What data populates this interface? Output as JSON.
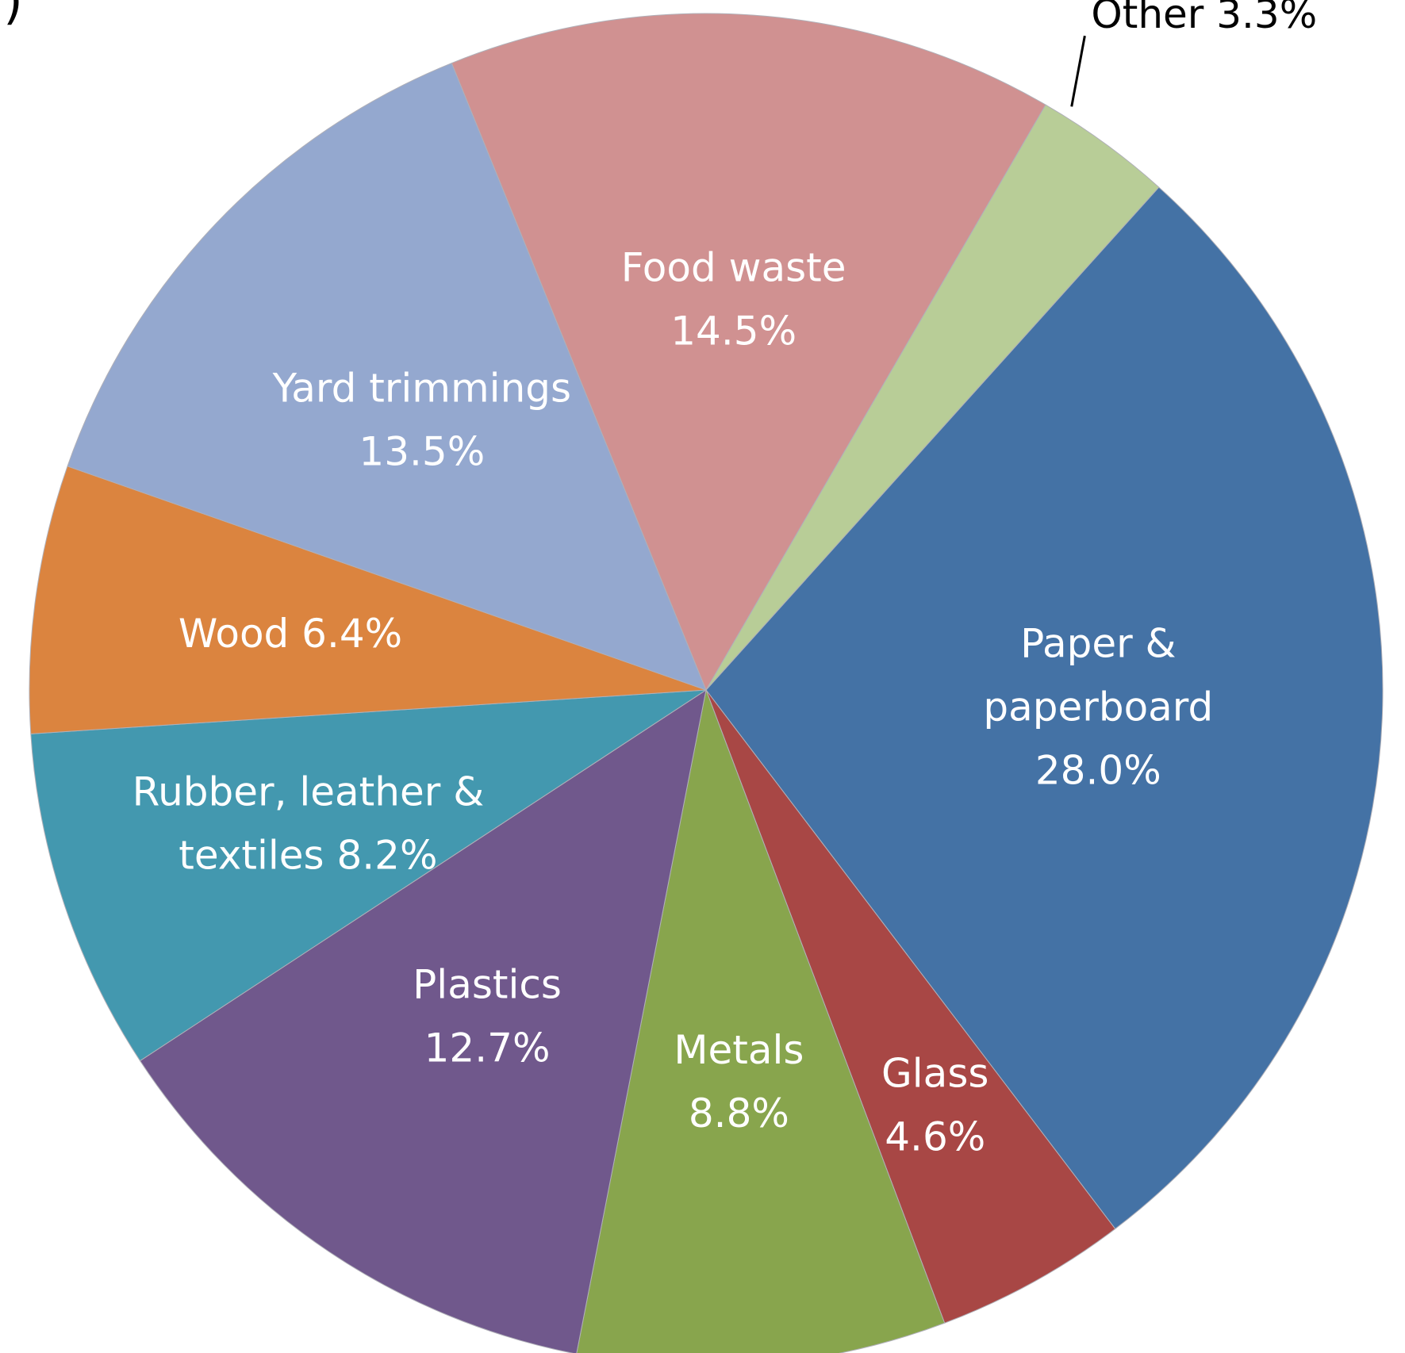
{
  "panel_mark": ")",
  "chart_data": {
    "type": "pie",
    "title": "",
    "unit": "%",
    "start_angle_deg": 42,
    "direction": "clockwise",
    "grid": false,
    "legend": "none",
    "slices": [
      {
        "name": "Paper & paperboard",
        "value": 28.0,
        "color": "#4472A5",
        "label_lines": [
          "Paper &",
          "paperboard",
          "28.0%"
        ],
        "label_position": "inside"
      },
      {
        "name": "Glass",
        "value": 4.6,
        "color": "#A84745",
        "label_lines": [
          "Glass",
          "4.6%"
        ],
        "label_position": "inside"
      },
      {
        "name": "Metals",
        "value": 8.8,
        "color": "#88A54D",
        "label_lines": [
          "Metals",
          "8.8%"
        ],
        "label_position": "inside"
      },
      {
        "name": "Plastics",
        "value": 12.7,
        "color": "#70588C",
        "label_lines": [
          "Plastics",
          "12.7%"
        ],
        "label_position": "inside"
      },
      {
        "name": "Rubber, leather & textiles",
        "value": 8.2,
        "color": "#4398AF",
        "label_lines": [
          "Rubber, leather &",
          "textiles 8.2%"
        ],
        "label_position": "inside"
      },
      {
        "name": "Wood",
        "value": 6.4,
        "color": "#DB843F",
        "label_lines": [
          "Wood 6.4%"
        ],
        "label_position": "inside"
      },
      {
        "name": "Yard trimmings",
        "value": 13.5,
        "color": "#94A8CF",
        "label_lines": [
          "Yard trimmings",
          "13.5%"
        ],
        "label_position": "inside"
      },
      {
        "name": "Food waste",
        "value": 14.5,
        "color": "#D09191",
        "label_lines": [
          "Food waste",
          "14.5%"
        ],
        "label_position": "inside"
      },
      {
        "name": "Other",
        "value": 3.3,
        "color": "#B8CD97",
        "label_lines": [
          "Other 3.3%"
        ],
        "label_position": "outside"
      }
    ]
  }
}
